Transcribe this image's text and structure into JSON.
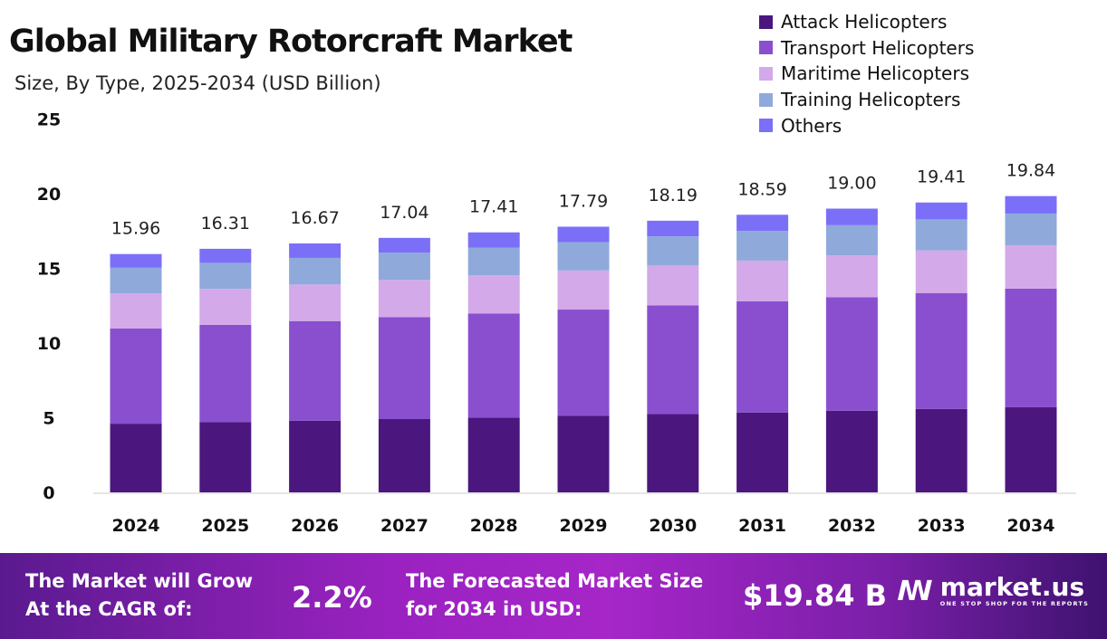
{
  "chart_data": {
    "type": "bar",
    "stacked": true,
    "title": "Global Military Rotorcraft Market",
    "subtitle": "Size, By Type, 2025-2034 (USD Billion)",
    "xlabel": "",
    "ylabel": "",
    "ylim": [
      0,
      25
    ],
    "yticks": [
      "0",
      "5",
      "10",
      "15",
      "20",
      "25"
    ],
    "categories": [
      "2024",
      "2025",
      "2026",
      "2027",
      "2028",
      "2029",
      "2030",
      "2031",
      "2032",
      "2033",
      "2034"
    ],
    "totals": [
      "15.96",
      "16.31",
      "16.67",
      "17.04",
      "17.41",
      "17.79",
      "18.19",
      "18.59",
      "19.00",
      "19.41",
      "19.84"
    ],
    "legend_position": "top-right",
    "series": [
      {
        "name": "Attack Helicopters",
        "color": "#4b177f",
        "values": [
          4.6,
          4.7,
          4.8,
          4.91,
          5.01,
          5.12,
          5.24,
          5.35,
          5.47,
          5.59,
          5.7
        ]
      },
      {
        "name": "Transport Helicopters",
        "color": "#8a4fcf",
        "values": [
          6.38,
          6.52,
          6.67,
          6.82,
          6.96,
          7.12,
          7.28,
          7.44,
          7.6,
          7.76,
          7.94
        ]
      },
      {
        "name": "Maritime Helicopters",
        "color": "#d3a9ea",
        "values": [
          2.35,
          2.4,
          2.45,
          2.5,
          2.56,
          2.62,
          2.67,
          2.73,
          2.79,
          2.85,
          2.91
        ]
      },
      {
        "name": "Training Helicopters",
        "color": "#8fa9db",
        "values": [
          1.71,
          1.75,
          1.78,
          1.82,
          1.86,
          1.9,
          1.95,
          1.99,
          2.03,
          2.08,
          2.12
        ]
      },
      {
        "name": "Others",
        "color": "#7b6ff7",
        "values": [
          0.92,
          0.94,
          0.97,
          0.99,
          1.02,
          1.03,
          1.05,
          1.08,
          1.11,
          1.13,
          1.17
        ]
      }
    ]
  },
  "footer": {
    "cagr_label": "The Market will Grow At the CAGR of:",
    "cagr_value": "2.2%",
    "forecast_label": "The Forecasted Market Size for 2034 in USD:",
    "forecast_value": "$19.84 B",
    "logo_name": "market.us",
    "logo_tagline": "ONE STOP SHOP FOR THE REPORTS"
  }
}
